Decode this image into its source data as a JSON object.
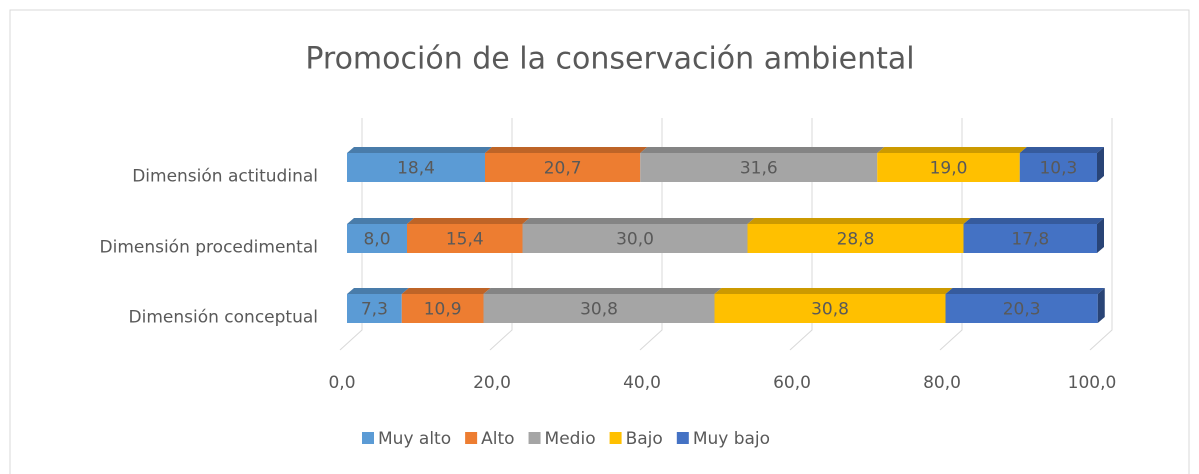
{
  "chart_data": {
    "type": "bar",
    "orientation": "horizontal",
    "stacked": true,
    "title": "Promoción de la conservación ambiental",
    "categories": [
      "Dimensión actitudinal",
      "Dimensión procedimental",
      "Dimensión conceptual"
    ],
    "series": [
      {
        "name": "Muy alto",
        "color": "#5b9bd5",
        "values": [
          18.4,
          8.0,
          7.3
        ],
        "value_labels": [
          "18,4",
          "8,0",
          "7,3"
        ]
      },
      {
        "name": "Alto",
        "color": "#ed7d31",
        "values": [
          20.7,
          15.4,
          10.9
        ],
        "value_labels": [
          "20,7",
          "15,4",
          "10,9"
        ]
      },
      {
        "name": "Medio",
        "color": "#a5a5a5",
        "values": [
          31.6,
          30.0,
          30.8
        ],
        "value_labels": [
          "31,6",
          "30,0",
          "30,8"
        ]
      },
      {
        "name": "Bajo",
        "color": "#ffc000",
        "values": [
          19.0,
          28.8,
          30.8
        ],
        "value_labels": [
          "19,0",
          "28,8",
          "30,8"
        ]
      },
      {
        "name": "Muy bajo",
        "color": "#4472c4",
        "values": [
          10.3,
          17.8,
          20.3
        ],
        "value_labels": [
          "10,3",
          "17,8",
          "20,3"
        ]
      }
    ],
    "xlim": [
      0,
      100
    ],
    "xticks": [
      {
        "value": 0,
        "label": "0,0"
      },
      {
        "value": 20,
        "label": "20,0"
      },
      {
        "value": 40,
        "label": "40,0"
      },
      {
        "value": 60,
        "label": "60,0"
      },
      {
        "value": 80,
        "label": "80,0"
      },
      {
        "value": 100,
        "label": "100,0"
      }
    ],
    "grid": true,
    "legend": "bottom"
  }
}
